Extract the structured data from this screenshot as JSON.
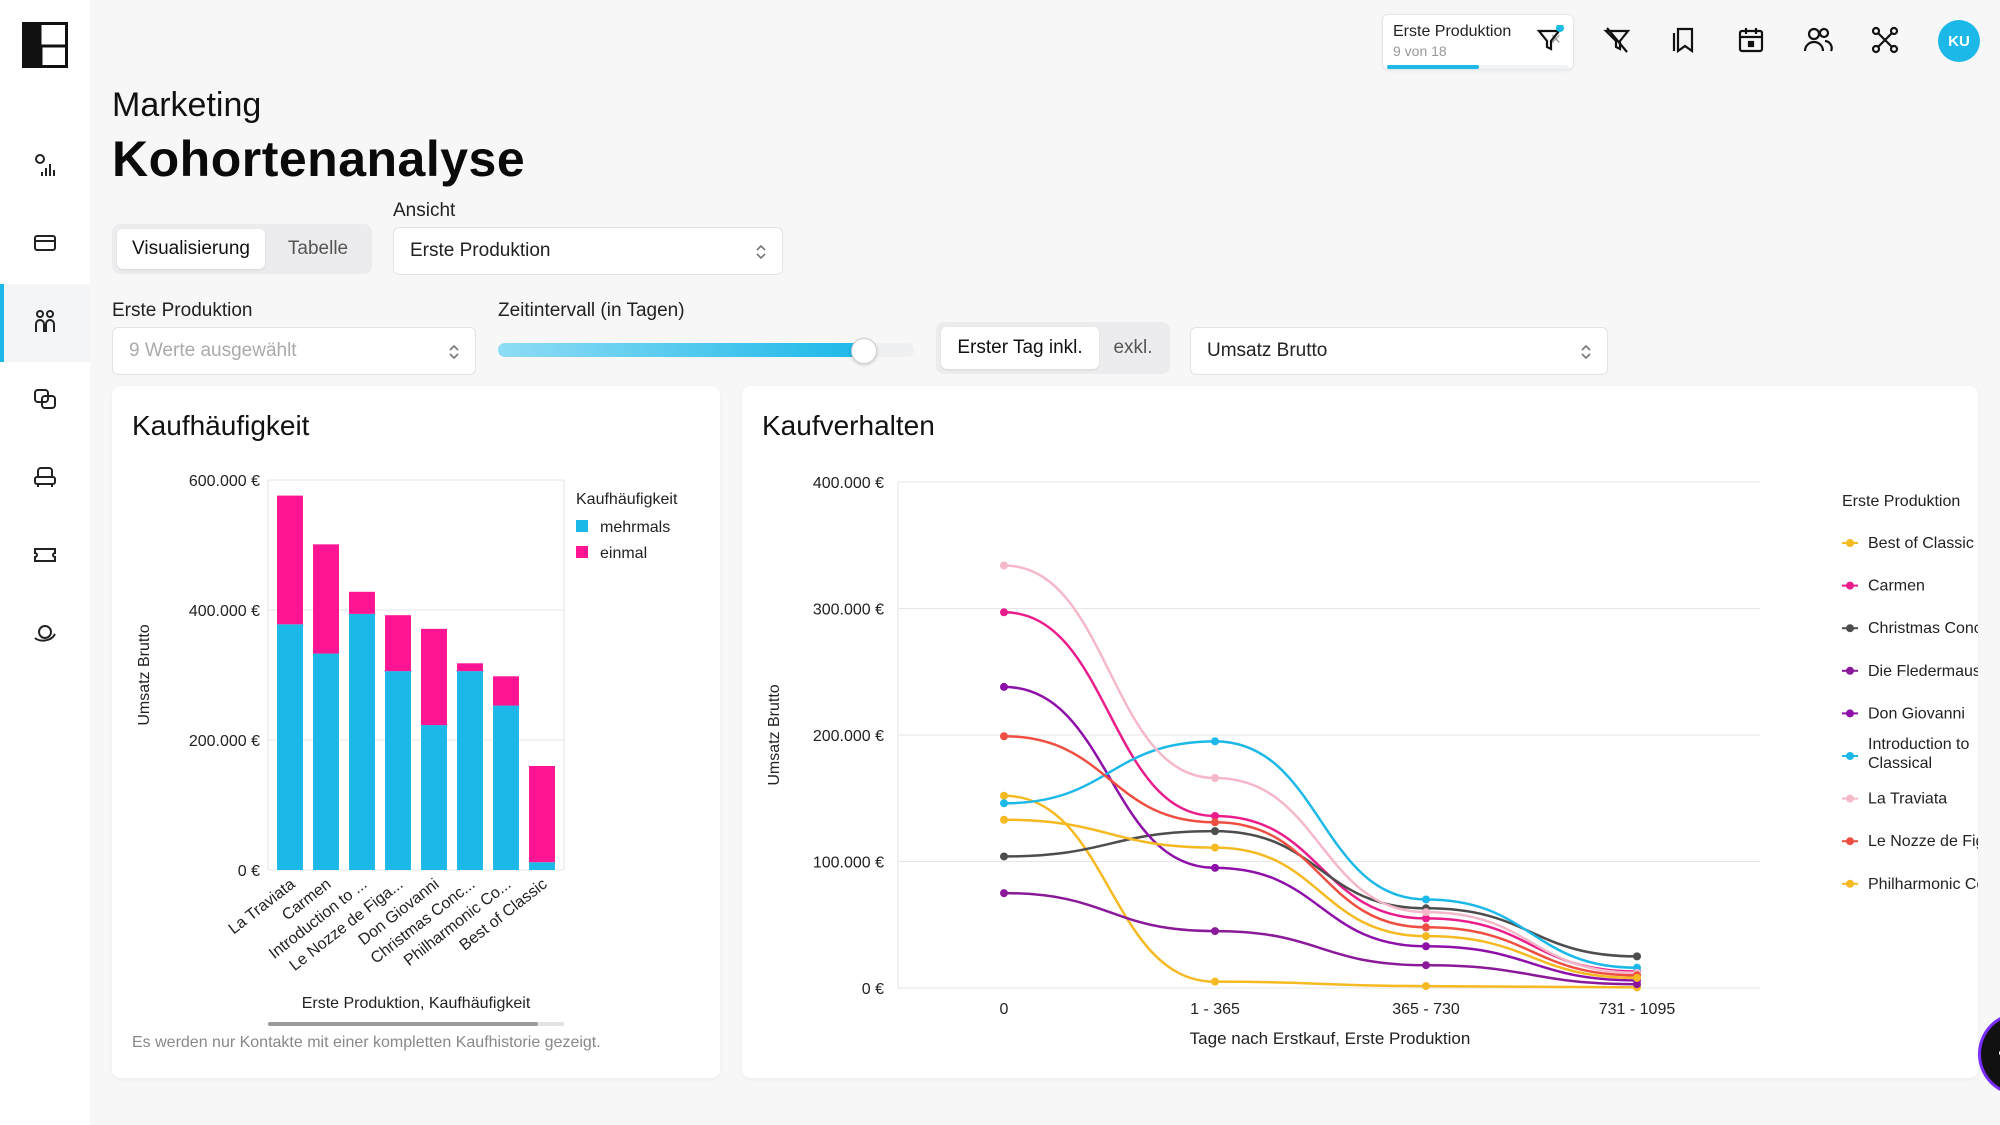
{
  "header": {
    "subtitle": "Marketing",
    "title": "Kohortenanalyse",
    "filter_chip": {
      "title": "Erste Produktion",
      "sub": "9 von 18",
      "close": "×",
      "progress": 0.5
    },
    "avatar": "KU",
    "icons": [
      "filter-icon",
      "clear-filter-icon",
      "bookmarks-icon",
      "calendar-icon",
      "users-icon",
      "network-icon"
    ]
  },
  "sidebar": {
    "items": [
      "chart-icon",
      "card-icon",
      "people-icon",
      "theater-masks-icon",
      "seat-icon",
      "ticket-icon",
      "orbit-icon"
    ]
  },
  "controls": {
    "tab_vis": "Visualisierung",
    "tab_table": "Tabelle",
    "ansicht_label": "Ansicht",
    "ansicht_value": "Erste Produktion",
    "erste_label": "Erste Produktion",
    "erste_placeholder": "9 Werte ausgewählt",
    "zeit_label": "Zeitintervall (in Tagen)",
    "slider_value": 0.88,
    "toggle_on": "Erster Tag inkl.",
    "toggle_off": "exkl.",
    "metric_value": "Umsatz Brutto"
  },
  "card1": {
    "title": "Kaufhäufigkeit",
    "note": "Es werden nur Kontakte mit einer kompletten Kaufhistorie gezeigt."
  },
  "card2": {
    "title": "Kaufverhalten"
  },
  "chart_data": [
    {
      "type": "bar",
      "stacked": true,
      "categories": [
        "La Traviata",
        "Carmen",
        "Introduction to ...",
        "Le Nozze de Figa...",
        "Don Giovanni",
        "Christmas Conc...",
        "Philharmonic Co...",
        "Best of Classic"
      ],
      "series": [
        {
          "name": "mehrmals",
          "color": "#1cb8e8",
          "values": [
            378000,
            333000,
            394000,
            306000,
            223000,
            306000,
            253000,
            12000
          ]
        },
        {
          "name": "einmal",
          "color": "#ff1493",
          "values": [
            198000,
            168000,
            34000,
            86000,
            148000,
            12000,
            45000,
            148000
          ]
        }
      ],
      "yticks": [
        "600.000 €",
        "400.000 €",
        "200.000 €",
        "0 €"
      ],
      "ylim": [
        0,
        600000
      ],
      "ylabel": "Umsatz Brutto",
      "xlabel": "Erste Produktion, Kaufhäufigkeit",
      "legend_title": "Kaufhäufigkeit",
      "legend_position": "right"
    },
    {
      "type": "line",
      "categories": [
        "0",
        "1 - 365",
        "365 - 730",
        "731 - 1095"
      ],
      "yticks": [
        "400.000 €",
        "300.000 €",
        "200.000 €",
        "100.000 €",
        "0 €"
      ],
      "ylim": [
        0,
        400000
      ],
      "ylabel": "Umsatz Brutto",
      "xlabel": "Tage nach Erstkauf, Erste Produktion",
      "legend_title": "Erste Produktion",
      "legend_position": "right",
      "series": [
        {
          "name": "Best of Classic",
          "color": "#f5b921",
          "values": [
            152000,
            5000,
            1500,
            500
          ]
        },
        {
          "name": "Carmen",
          "color": "#e91e8c",
          "values": [
            297000,
            136000,
            55000,
            13000
          ]
        },
        {
          "name": "Christmas Concert",
          "color": "#4d4d4d",
          "values": [
            104000,
            124000,
            63000,
            25000
          ]
        },
        {
          "name": "Die Fledermaus",
          "color": "#8b1a9a",
          "values": [
            75000,
            45000,
            18000,
            3000
          ]
        },
        {
          "name": "Don Giovanni",
          "color": "#8e10a8",
          "values": [
            238000,
            95000,
            33000,
            6000
          ]
        },
        {
          "name": "Introduction to Classical",
          "color": "#1cb8e8",
          "values": [
            146000,
            195000,
            70000,
            16000
          ]
        },
        {
          "name": "La Traviata",
          "color": "#f4b8c8",
          "values": [
            334000,
            166000,
            60000,
            12000
          ]
        },
        {
          "name": "Le Nozze de Figaro",
          "color": "#ef4f43",
          "values": [
            199000,
            131000,
            48000,
            10000
          ]
        },
        {
          "name": "Philharmonic Concert",
          "color": "#f5b921",
          "values": [
            133000,
            111000,
            41000,
            8000
          ]
        }
      ]
    }
  ]
}
